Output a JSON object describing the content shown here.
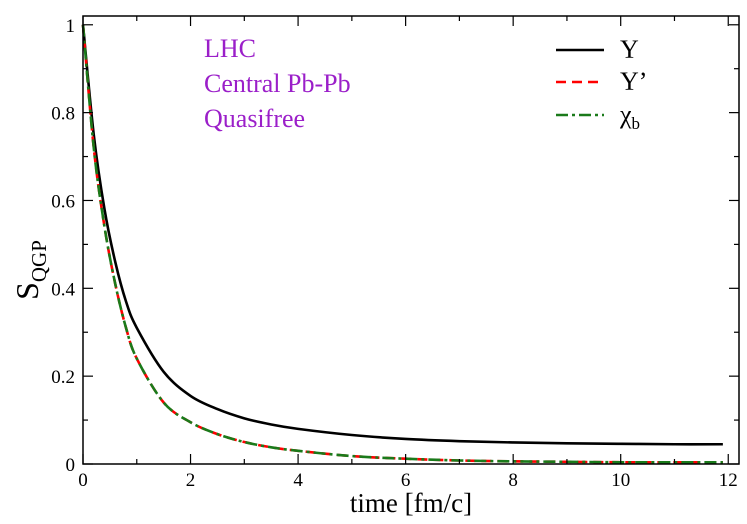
{
  "chart_data": {
    "type": "line",
    "xlabel": "time [fm/c]",
    "ylabel": {
      "main": "S",
      "sub": "QGP"
    },
    "xlim": [
      0,
      12.2
    ],
    "ylim": [
      0,
      1.02
    ],
    "xticks": [
      0,
      2,
      4,
      6,
      8,
      10,
      12
    ],
    "yticks": [
      0,
      0.2,
      0.4,
      0.6,
      0.8,
      1
    ],
    "xtick_labels": [
      "0",
      "2",
      "4",
      "6",
      "8",
      "10",
      "12"
    ],
    "ytick_labels": [
      "0",
      "0.2",
      "0.4",
      "0.6",
      "0.8",
      "1"
    ],
    "grid": false,
    "legend_position": "top-right",
    "annotations": [
      "LHC",
      "Central Pb-Pb",
      "Quasifree"
    ],
    "annotation_color": "#9b1fc9",
    "series": [
      {
        "name": "Υ",
        "color": "#000000",
        "style": "solid",
        "x": [
          0,
          0.2,
          0.4,
          0.6,
          0.8,
          1.0,
          1.5,
          2.0,
          2.5,
          3.0,
          3.5,
          4.0,
          5.0,
          6.0,
          7.0,
          8.0,
          9.0,
          10.0,
          11.0,
          11.9
        ],
        "y": [
          1.0,
          0.75,
          0.58,
          0.46,
          0.37,
          0.31,
          0.21,
          0.155,
          0.125,
          0.104,
          0.09,
          0.08,
          0.066,
          0.057,
          0.052,
          0.049,
          0.047,
          0.046,
          0.045,
          0.045
        ]
      },
      {
        "name": "Υ’",
        "color": "#ff0000",
        "style": "dashed",
        "x": [
          0,
          0.2,
          0.4,
          0.6,
          0.8,
          1.0,
          1.5,
          2.0,
          2.5,
          3.0,
          3.5,
          4.0,
          5.0,
          6.0,
          7.0,
          8.0,
          9.0,
          10.0,
          11.0,
          11.9
        ],
        "y": [
          1.0,
          0.72,
          0.54,
          0.41,
          0.31,
          0.24,
          0.14,
          0.095,
          0.068,
          0.05,
          0.038,
          0.03,
          0.018,
          0.012,
          0.008,
          0.006,
          0.005,
          0.004,
          0.004,
          0.004
        ]
      },
      {
        "name": "χ",
        "name_sub": "b",
        "color": "#1a7a1a",
        "style": "dashdot",
        "x": [
          0,
          0.2,
          0.4,
          0.6,
          0.8,
          1.0,
          1.5,
          2.0,
          2.5,
          3.0,
          3.5,
          4.0,
          5.0,
          6.0,
          7.0,
          8.0,
          9.0,
          10.0,
          11.0,
          11.9
        ],
        "y": [
          1.0,
          0.72,
          0.54,
          0.41,
          0.31,
          0.24,
          0.14,
          0.095,
          0.068,
          0.05,
          0.038,
          0.03,
          0.018,
          0.012,
          0.008,
          0.006,
          0.005,
          0.004,
          0.004,
          0.004
        ]
      }
    ]
  }
}
